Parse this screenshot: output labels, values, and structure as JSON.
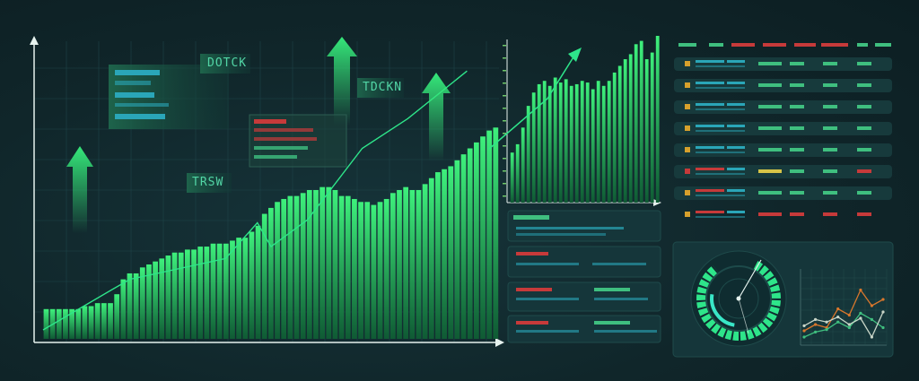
{
  "labels": {
    "main_tag_1": "DOTCK",
    "main_tag_2": "TDCKN",
    "main_tag_3": "TRSW"
  },
  "colors": {
    "background": "#10262a",
    "bar": "#2bd46a",
    "line": "#2ee58a",
    "negative": "#c63a3a",
    "accent_cyan": "#2aa6b8",
    "orange": "#d9772c"
  },
  "chart_data": [
    {
      "type": "bar",
      "values": [
        10,
        10,
        10,
        10,
        10,
        10,
        11,
        11,
        12,
        12,
        12,
        15,
        20,
        22,
        22,
        24,
        25,
        26,
        27,
        28,
        29,
        29,
        30,
        30,
        31,
        31,
        32,
        32,
        32,
        33,
        34,
        34,
        36,
        38,
        42,
        44,
        46,
        47,
        48,
        48,
        49,
        50,
        50,
        51,
        51,
        50,
        48,
        48,
        47,
        46,
        46,
        45,
        46,
        47,
        49,
        50,
        51,
        50,
        50,
        52,
        54,
        56,
        57,
        58,
        60,
        62,
        64,
        66,
        68,
        70,
        71
      ],
      "line": [
        {
          "x": 0,
          "y": 3
        },
        {
          "x": 19,
          "y": 20
        },
        {
          "x": 40,
          "y": 27
        },
        {
          "x": 47,
          "y": 39
        },
        {
          "x": 50,
          "y": 31
        },
        {
          "x": 58,
          "y": 40
        },
        {
          "x": 70,
          "y": 64
        },
        {
          "x": 80,
          "y": 74
        },
        {
          "x": 93,
          "y": 90
        }
      ]
    },
    {
      "type": "bar",
      "values": [
        30,
        35,
        45,
        58,
        66,
        71,
        73,
        70,
        75,
        72,
        74,
        70,
        71,
        73,
        72,
        68,
        73,
        70,
        73,
        78,
        82,
        86,
        89,
        95,
        97,
        86,
        90,
        100
      ]
    },
    {
      "type": "pie",
      "values": [
        0.82
      ]
    },
    {
      "type": "line",
      "series": [
        {
          "color": "#d9772c",
          "values": [
            20,
            30,
            25,
            55,
            45,
            85,
            60,
            70
          ]
        },
        {
          "color": "#3fbf7f",
          "values": [
            10,
            18,
            22,
            34,
            25,
            48,
            38,
            25
          ]
        },
        {
          "color": "#c9d6c8",
          "values": [
            28,
            38,
            34,
            42,
            30,
            40,
            10,
            50
          ]
        }
      ]
    }
  ]
}
